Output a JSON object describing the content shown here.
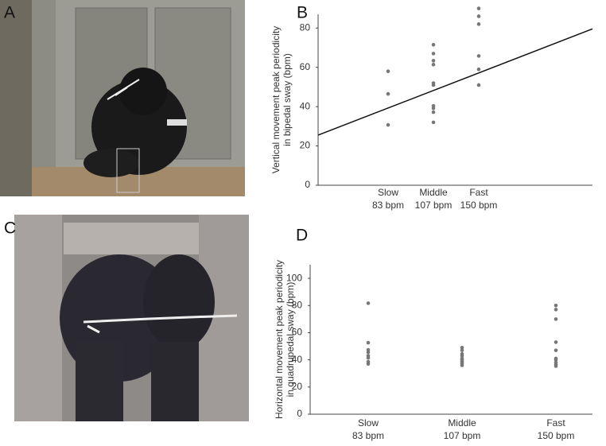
{
  "photos": [
    {
      "label": "A"
    },
    {
      "label": "C"
    }
  ],
  "chart_data": [
    {
      "type": "strip",
      "label": "B",
      "ylabel": [
        "Vertical movement peak periodicity",
        "in bipedal sway (bpm)"
      ],
      "categories": [
        "Slow",
        "Middle",
        "Fast"
      ],
      "category_tempos": [
        "83 bpm",
        "107 bpm",
        "150 bpm"
      ],
      "values": [
        [
          58,
          46.5,
          30.7
        ],
        [
          71.5,
          67,
          63.4,
          61.4,
          52,
          51,
          40.4,
          39.2,
          37.2,
          32
        ],
        [
          90,
          86,
          82,
          65.8,
          59,
          51
        ]
      ],
      "color": "#777777",
      "trendline": {
        "values": [
          25.5,
          79.6
        ],
        "color": "#111111"
      },
      "ylim": [
        0,
        87
      ],
      "yticks": [
        0,
        20,
        40,
        60,
        80
      ]
    },
    {
      "type": "strip",
      "label": "D",
      "ylabel": [
        "Horizontal movement peak periodicity",
        "in quadrupedal sway (bpm)"
      ],
      "categories": [
        "Slow",
        "Middle",
        "Fast"
      ],
      "category_tempos": [
        "83 bpm",
        "107 bpm",
        "150 bpm"
      ],
      "values": [
        [
          81.7,
          52.6,
          47.4,
          45.6,
          43,
          41.5,
          38.6,
          37
        ],
        [
          49,
          47,
          44.4,
          43,
          41,
          40,
          39,
          38,
          37,
          36
        ],
        [
          80,
          77,
          70,
          53,
          47,
          41,
          40,
          38,
          36.5,
          35.4
        ]
      ],
      "color": "#777777",
      "ylim": [
        0,
        110
      ],
      "yticks": [
        0,
        20,
        40,
        60,
        80,
        100
      ]
    }
  ]
}
